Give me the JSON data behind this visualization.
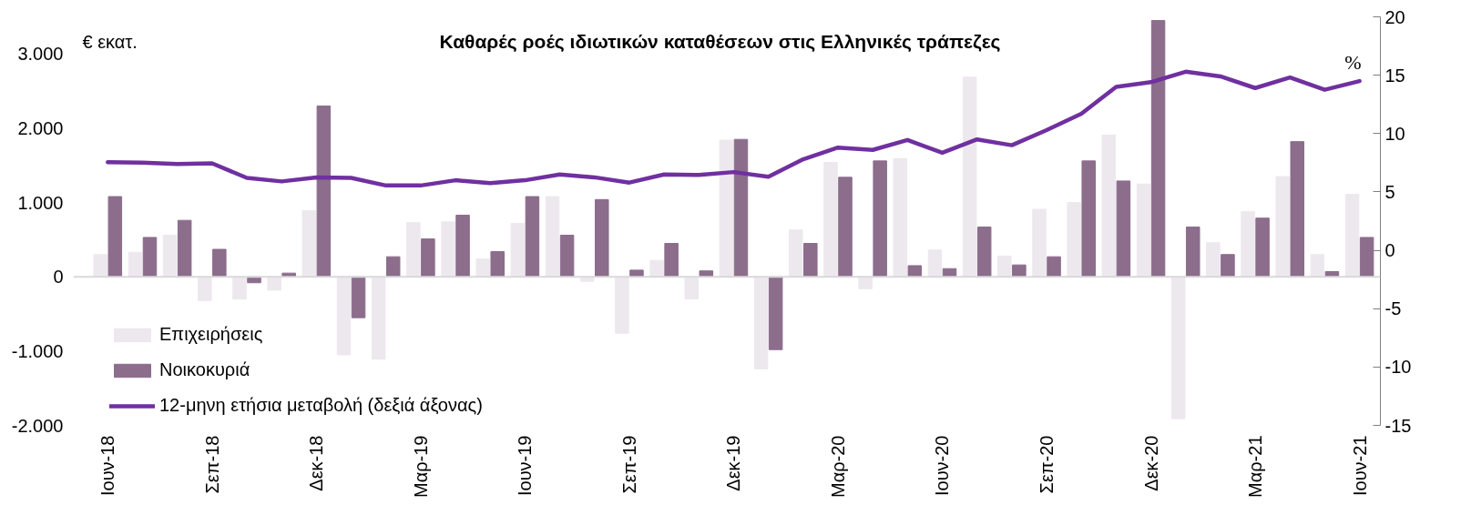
{
  "chart_data": {
    "type": "bar",
    "title": "Καθαρές ροές ιδιωτικών καταθέσεων στις Ελληνικές τράπεζες",
    "ylabel": "€ εκατ.",
    "y2label": "%",
    "categories": [
      "Ιουν-18",
      null,
      null,
      "Σεπ-18",
      null,
      null,
      "Δεκ-18",
      null,
      null,
      "Μαρ-19",
      null,
      null,
      "Ιουν-19",
      null,
      null,
      "Σεπ-19",
      null,
      null,
      "Δεκ-19",
      null,
      null,
      "Μαρ-20",
      null,
      null,
      "Ιουν-20",
      null,
      null,
      "Σεπ-20",
      null,
      null,
      "Δεκ-20",
      null,
      null,
      "Μαρ-21",
      null,
      null,
      "Ιουν-21"
    ],
    "series": [
      {
        "name": "Επιχειρήσεις",
        "color": "#ede8ee",
        "values": [
          300,
          330,
          560,
          -320,
          -300,
          -180,
          890,
          -1050,
          -1110,
          730,
          740,
          240,
          720,
          1080,
          -60,
          -760,
          220,
          -300,
          1840,
          -1240,
          630,
          1540,
          -160,
          1590,
          360,
          2690,
          280,
          910,
          1000,
          1910,
          1250,
          -1910,
          460,
          880,
          1350,
          300,
          1110
        ]
      },
      {
        "name": "Νοικοκυριά",
        "color": "#8c6d8c",
        "values": [
          1080,
          530,
          760,
          370,
          -80,
          50,
          2300,
          -550,
          270,
          510,
          830,
          340,
          1080,
          560,
          1040,
          90,
          450,
          80,
          1850,
          -980,
          450,
          1340,
          1560,
          150,
          110,
          670,
          160,
          270,
          1560,
          1290,
          3450,
          670,
          300,
          790,
          1820,
          70,
          530
        ]
      },
      {
        "name": "12-μηνη ετήσια μεταβολή (δεξιά άξονας)",
        "type": "line",
        "axis": "y2",
        "color": "#7030a0",
        "values": [
          7.55,
          7.5,
          7.4,
          7.45,
          6.2,
          5.9,
          6.25,
          6.2,
          5.55,
          5.55,
          6.0,
          5.75,
          6.0,
          6.5,
          6.25,
          5.8,
          6.5,
          6.45,
          6.7,
          6.3,
          7.8,
          8.8,
          8.6,
          9.45,
          8.35,
          9.5,
          9.0,
          10.3,
          11.7,
          14.0,
          14.4,
          15.3,
          14.9,
          13.9,
          14.8,
          13.75,
          14.5
        ]
      }
    ],
    "ylim": [
      -2000,
      3500
    ],
    "yticks": [
      {
        "value": -2000,
        "label": "-2.000"
      },
      {
        "value": -1000,
        "label": "-1.000"
      },
      0,
      {
        "value": 1000,
        "label": "1.000"
      },
      {
        "value": 2000,
        "label": "2.000"
      },
      {
        "value": 3000,
        "label": "3.000"
      }
    ],
    "y2lim": [
      -15,
      20
    ],
    "y2ticks": [
      -15,
      -10,
      -5,
      0,
      5,
      10,
      15,
      20
    ],
    "ref_lines": [
      {
        "axis": "y",
        "value": 0,
        "color": "#d9d9d9"
      }
    ],
    "legend": "bottom left",
    "grid": false
  }
}
